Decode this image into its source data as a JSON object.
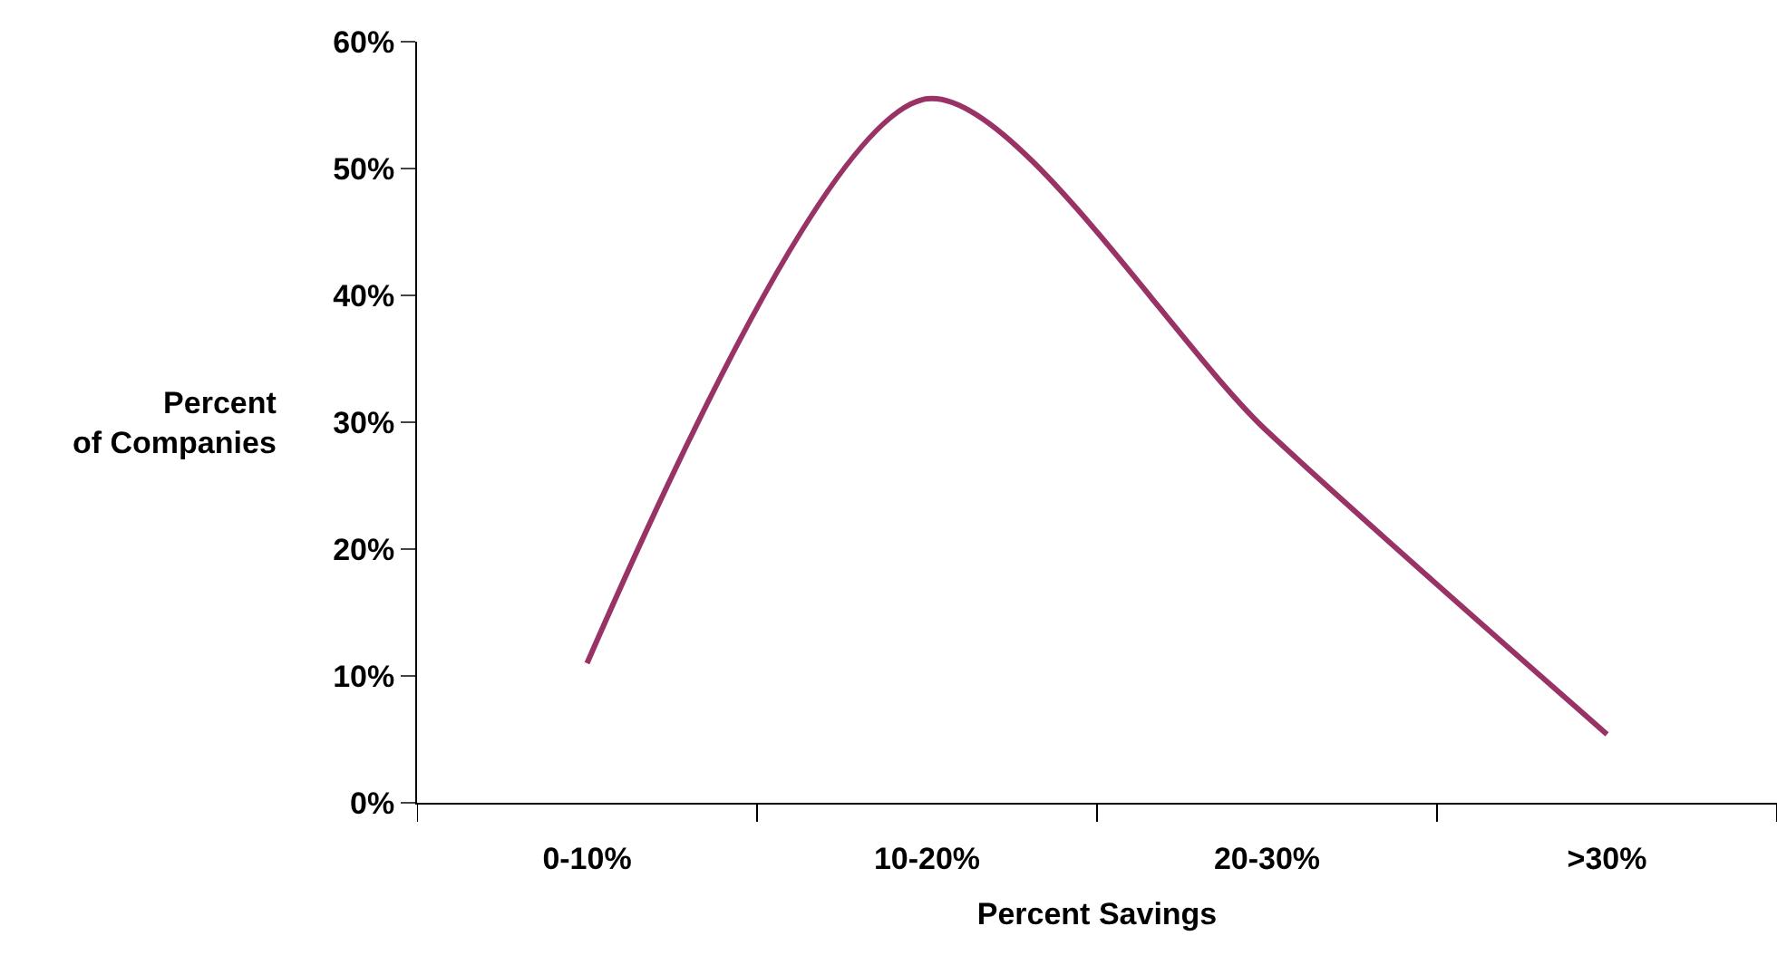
{
  "chart_data": {
    "type": "line",
    "xlabel": "Percent Savings",
    "ylabel": "Percent\nof Companies",
    "categories": [
      "0-10%",
      "10-20%",
      "20-30%",
      ">30%"
    ],
    "series": [
      {
        "color": "#993366",
        "values": [
          11,
          55.5,
          29.3,
          5.4
        ]
      }
    ],
    "ylim": [
      0,
      60
    ],
    "yticks": [
      {
        "value": 0,
        "label": "0%"
      },
      {
        "value": 10,
        "label": "10%"
      },
      {
        "value": 20,
        "label": "20%"
      },
      {
        "value": 30,
        "label": "30%"
      },
      {
        "value": 40,
        "label": "40%"
      },
      {
        "value": 50,
        "label": "50%"
      },
      {
        "value": 60,
        "label": "60%"
      }
    ],
    "legend": false,
    "marker": "none",
    "line_style": "solid"
  }
}
